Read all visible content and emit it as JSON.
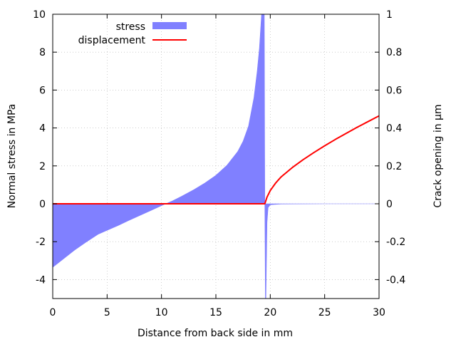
{
  "chart_data": {
    "type": "area",
    "xlabel": "Distance from back side in mm",
    "ylabel": "Normal stress in MPa",
    "y2label": "Crack opening in µm",
    "xlim": [
      0,
      30
    ],
    "ylim": [
      -5,
      10
    ],
    "y2lim": [
      -0.5,
      1
    ],
    "grid": true,
    "legend_position": "top-left",
    "x_ticks": [
      "0",
      "5",
      "10",
      "15",
      "20",
      "25",
      "30"
    ],
    "y_ticks": [
      "-4",
      "-2",
      "0",
      "2",
      "4",
      "6",
      "8",
      "10"
    ],
    "y2_ticks": [
      "-0.4",
      "-0.2",
      "0",
      "0.2",
      "0.4",
      "0.6",
      "0.8",
      "1"
    ],
    "series": [
      {
        "name": "stress",
        "axis": "y",
        "style": "filled",
        "color": "#8080ff",
        "x": [
          0,
          1,
          2,
          3,
          4.2,
          5,
          6,
          7,
          8,
          9,
          10,
          10.4,
          11,
          12,
          13,
          14,
          15,
          16,
          17,
          17.5,
          18,
          18.5,
          18.8,
          19,
          19.2,
          19.35,
          19.45,
          19.5,
          19.55,
          19.6,
          19.7,
          19.8,
          20,
          21,
          25,
          30
        ],
        "y": [
          -3.35,
          -2.9,
          -2.45,
          -2.05,
          -1.6,
          -1.4,
          -1.15,
          -0.88,
          -0.62,
          -0.36,
          -0.1,
          0.0,
          0.15,
          0.44,
          0.75,
          1.1,
          1.5,
          2.02,
          2.75,
          3.3,
          4.1,
          5.6,
          7.0,
          8.2,
          10.0,
          10.0,
          10.0,
          0.0,
          -5.0,
          -5.0,
          -1.0,
          -0.2,
          -0.05,
          -0.01,
          0.0,
          0.0
        ]
      },
      {
        "name": "displacement",
        "axis": "y2",
        "style": "line",
        "color": "#ff0000",
        "x": [
          0,
          5,
          10,
          15,
          19.4,
          19.5,
          19.7,
          20,
          20.5,
          21,
          22,
          23,
          24,
          25,
          26,
          27,
          28,
          29,
          30
        ],
        "y": [
          0,
          0,
          0,
          0,
          0,
          0.0,
          0.035,
          0.07,
          0.11,
          0.142,
          0.19,
          0.232,
          0.27,
          0.306,
          0.34,
          0.372,
          0.404,
          0.434,
          0.464
        ]
      }
    ]
  }
}
